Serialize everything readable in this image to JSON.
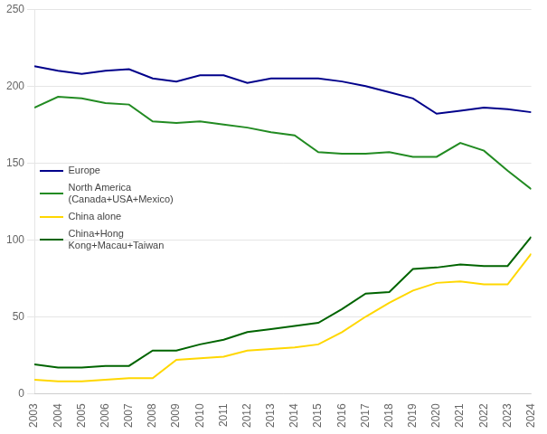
{
  "chart_data": {
    "type": "line",
    "x": [
      2003,
      2004,
      2005,
      2006,
      2007,
      2008,
      2009,
      2010,
      2011,
      2012,
      2013,
      2014,
      2015,
      2016,
      2017,
      2018,
      2019,
      2020,
      2021,
      2022,
      2023,
      2024
    ],
    "series": [
      {
        "name": "Europe",
        "color": "#00008B",
        "values": [
          213,
          210,
          208,
          210,
          211,
          205,
          203,
          207,
          207,
          202,
          205,
          205,
          205,
          203,
          200,
          196,
          192,
          182,
          184,
          186,
          185,
          183
        ]
      },
      {
        "name": "North America\n(Canada+USA+Mexico)",
        "color": "#228B22",
        "values": [
          186,
          193,
          192,
          189,
          188,
          177,
          176,
          177,
          175,
          173,
          170,
          168,
          157,
          156,
          156,
          157,
          154,
          154,
          163,
          158,
          145,
          133
        ]
      },
      {
        "name": "China alone",
        "color": "#FFD700",
        "values": [
          9,
          8,
          8,
          9,
          10,
          10,
          22,
          23,
          24,
          28,
          29,
          30,
          32,
          40,
          50,
          59,
          67,
          72,
          73,
          71,
          71,
          91
        ]
      },
      {
        "name": "China+Hong\nKong+Macau+Taiwan",
        "color": "#006400",
        "values": [
          19,
          17,
          17,
          18,
          18,
          28,
          28,
          32,
          35,
          40,
          42,
          44,
          46,
          55,
          65,
          66,
          81,
          82,
          84,
          83,
          83,
          102
        ]
      }
    ],
    "xlim": [
      2003,
      2024
    ],
    "xticks": [
      2003,
      2004,
      2005,
      2006,
      2007,
      2008,
      2009,
      2010,
      2011,
      2012,
      2013,
      2014,
      2015,
      2016,
      2017,
      2018,
      2019,
      2020,
      2021,
      2022,
      2023,
      2024
    ],
    "ylim": [
      0,
      250
    ],
    "yticks": [
      0,
      50,
      100,
      150,
      200,
      250
    ],
    "grid": "y",
    "legend": "left"
  }
}
